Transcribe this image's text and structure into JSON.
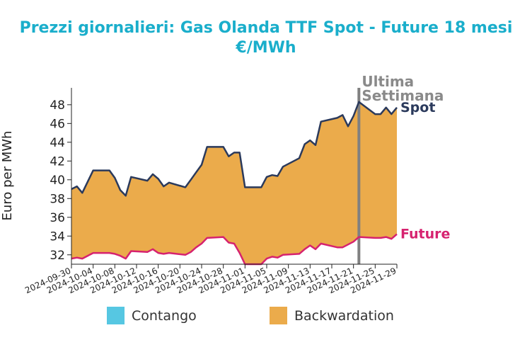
{
  "chart_data": {
    "type": "area",
    "title": "Prezzi giornalieri: Gas Olanda TTF Spot - Future 18 mesi",
    "subtitle": "€/MWh",
    "ylabel": "Euro per MWh",
    "xlabel": "",
    "ylim": [
      31.0,
      49.8
    ],
    "xlim": [
      "2024-09-30",
      "2024-11-29"
    ],
    "yticks": [
      32,
      34,
      36,
      38,
      40,
      42,
      44,
      46,
      48
    ],
    "xticks": [
      "2024-09-30",
      "2024-10-04",
      "2024-10-08",
      "2024-10-12",
      "2024-10-16",
      "2024-10-20",
      "2024-10-24",
      "2024-10-28",
      "2024-11-01",
      "2024-11-05",
      "2024-11-09",
      "2024-11-13",
      "2024-11-17",
      "2024-11-21",
      "2024-11-25",
      "2024-11-29"
    ],
    "dates": [
      "2024-09-30",
      "2024-10-01",
      "2024-10-02",
      "2024-10-03",
      "2024-10-04",
      "2024-10-07",
      "2024-10-08",
      "2024-10-09",
      "2024-10-10",
      "2024-10-11",
      "2024-10-14",
      "2024-10-15",
      "2024-10-16",
      "2024-10-17",
      "2024-10-18",
      "2024-10-21",
      "2024-10-22",
      "2024-10-23",
      "2024-10-24",
      "2024-10-25",
      "2024-10-28",
      "2024-10-29",
      "2024-10-30",
      "2024-10-31",
      "2024-11-01",
      "2024-11-04",
      "2024-11-05",
      "2024-11-06",
      "2024-11-07",
      "2024-11-08",
      "2024-11-11",
      "2024-11-12",
      "2024-11-13",
      "2024-11-14",
      "2024-11-15",
      "2024-11-18",
      "2024-11-19",
      "2024-11-20",
      "2024-11-21",
      "2024-11-22",
      "2024-11-25",
      "2024-11-26",
      "2024-11-27",
      "2024-11-28",
      "2024-11-29"
    ],
    "series": [
      {
        "name": "Spot",
        "color": "#2b3a5c",
        "values": [
          39.0,
          39.3,
          38.6,
          39.8,
          41.0,
          41.0,
          40.2,
          38.9,
          38.3,
          40.3,
          39.9,
          40.6,
          40.1,
          39.3,
          39.7,
          39.2,
          40.0,
          40.8,
          41.6,
          43.5,
          43.5,
          42.5,
          42.9,
          42.9,
          39.2,
          39.2,
          40.3,
          40.5,
          40.4,
          41.4,
          42.3,
          43.8,
          44.2,
          43.7,
          46.2,
          46.6,
          46.9,
          45.7,
          46.8,
          48.3,
          47.0,
          47.0,
          47.7,
          47.0,
          47.7
        ]
      },
      {
        "name": "Future",
        "color": "#d6226f",
        "values": [
          31.6,
          31.7,
          31.6,
          31.9,
          32.2,
          32.2,
          32.1,
          31.9,
          31.6,
          32.4,
          32.3,
          32.6,
          32.2,
          32.1,
          32.2,
          32.0,
          32.3,
          32.8,
          33.2,
          33.8,
          33.9,
          33.3,
          33.2,
          32.2,
          31.0,
          31.0,
          31.6,
          31.8,
          31.7,
          32.0,
          32.1,
          32.6,
          33.0,
          32.6,
          33.2,
          32.8,
          32.8,
          33.1,
          33.4,
          33.9,
          33.8,
          33.8,
          33.9,
          33.7,
          34.2
        ]
      }
    ],
    "annotations": [
      {
        "text_lines": [
          "Ultima",
          "Settimana"
        ],
        "x": "2024-11-22",
        "type": "vline",
        "color": "#808080"
      }
    ],
    "legend": {
      "position": "bottom",
      "items": [
        {
          "label": "Contango",
          "color": "#56c7e2"
        },
        {
          "label": "Backwardation",
          "color": "#ebab4b"
        }
      ]
    },
    "grid": false
  }
}
